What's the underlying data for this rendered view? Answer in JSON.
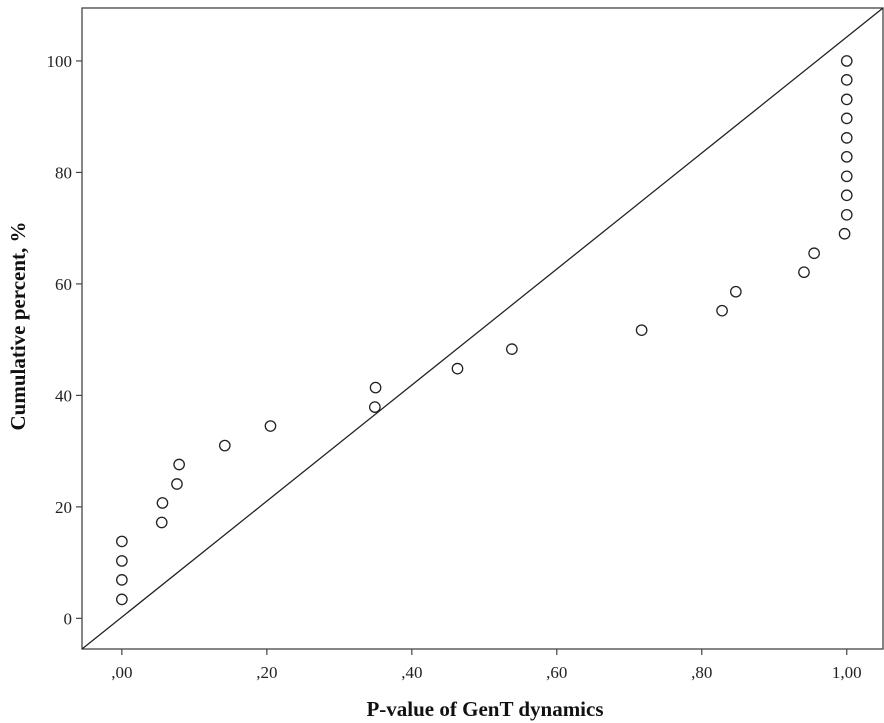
{
  "chart_data": {
    "type": "scatter",
    "xlabel": "P-value of GenT dynamics",
    "ylabel": "Cumulative percent, %",
    "xlim": [
      -0.055,
      1.05
    ],
    "ylim": [
      -5.5,
      109.5
    ],
    "x_ticks": [
      0,
      0.2,
      0.4,
      0.6,
      0.8,
      1.0
    ],
    "x_tick_labels": [
      ",00",
      ",20",
      ",40",
      ",60",
      ",80",
      "1,00"
    ],
    "y_ticks": [
      0,
      20,
      40,
      60,
      80,
      100
    ],
    "y_tick_labels": [
      "0",
      "20",
      "40",
      "60",
      "80",
      "100"
    ],
    "grid": false,
    "marker": "open-circle",
    "reference_line": {
      "from": [
        -0.055,
        -5.5
      ],
      "to": [
        1.05,
        109.5
      ]
    },
    "points": [
      {
        "x": 0.0,
        "y": 3.4
      },
      {
        "x": 0.0,
        "y": 6.9
      },
      {
        "x": 0.0,
        "y": 10.3
      },
      {
        "x": 0.0,
        "y": 13.8
      },
      {
        "x": 0.055,
        "y": 17.2
      },
      {
        "x": 0.056,
        "y": 20.7
      },
      {
        "x": 0.076,
        "y": 24.1
      },
      {
        "x": 0.079,
        "y": 27.6
      },
      {
        "x": 0.142,
        "y": 31.0
      },
      {
        "x": 0.205,
        "y": 34.5
      },
      {
        "x": 0.349,
        "y": 37.9
      },
      {
        "x": 0.35,
        "y": 41.4
      },
      {
        "x": 0.463,
        "y": 44.8
      },
      {
        "x": 0.538,
        "y": 48.3
      },
      {
        "x": 0.717,
        "y": 51.7
      },
      {
        "x": 0.828,
        "y": 55.2
      },
      {
        "x": 0.847,
        "y": 58.6
      },
      {
        "x": 0.941,
        "y": 62.1
      },
      {
        "x": 0.955,
        "y": 65.5
      },
      {
        "x": 0.997,
        "y": 69.0
      },
      {
        "x": 1.0,
        "y": 72.4
      },
      {
        "x": 1.0,
        "y": 75.9
      },
      {
        "x": 1.0,
        "y": 79.3
      },
      {
        "x": 1.0,
        "y": 82.8
      },
      {
        "x": 1.0,
        "y": 86.2
      },
      {
        "x": 1.0,
        "y": 89.7
      },
      {
        "x": 1.0,
        "y": 93.1
      },
      {
        "x": 1.0,
        "y": 96.6
      },
      {
        "x": 1.0,
        "y": 100.0
      }
    ]
  }
}
